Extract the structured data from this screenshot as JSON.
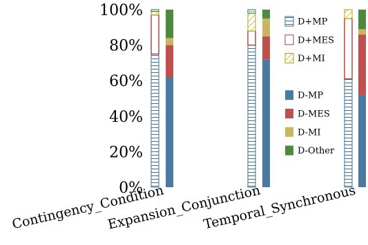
{
  "chart_data": {
    "type": "bar",
    "stacked": true,
    "categories": [
      "Contingency_Condition",
      "Expansion_Conjunction",
      "Temporal_Synchronous"
    ],
    "ylim": [
      0,
      100
    ],
    "yticks": [
      "0%",
      "20%",
      "40%",
      "60%",
      "80%",
      "100%"
    ],
    "groups": [
      {
        "name": "D+",
        "series": [
          {
            "name": "D+MP",
            "values": [
              75,
              80,
              61
            ],
            "color": "#3a6f98",
            "pattern": "hlines"
          },
          {
            "name": "D+MES",
            "values": [
              22,
              8,
              34
            ],
            "color": "#b03a3a",
            "pattern": "outline"
          },
          {
            "name": "D+MI",
            "values": [
              2,
              10,
              5
            ],
            "color": "#b8a000",
            "pattern": "diag"
          },
          {
            "name": "",
            "values": [
              1,
              2,
              0
            ],
            "color": "#2e7a2e",
            "pattern": "dots"
          }
        ]
      },
      {
        "name": "D-",
        "series": [
          {
            "name": "D-MP",
            "values": [
              62,
              72,
              52
            ],
            "color": "#4a7aa0",
            "pattern": "solid"
          },
          {
            "name": "D-MES",
            "values": [
              18,
              13,
              34
            ],
            "color": "#c0504d",
            "pattern": "solid"
          },
          {
            "name": "D-MI",
            "values": [
              4,
              10,
              3
            ],
            "color": "#c9b660",
            "pattern": "solid"
          },
          {
            "name": "D-Other",
            "values": [
              16,
              5,
              11
            ],
            "color": "#4e8a3e",
            "pattern": "solid"
          }
        ]
      }
    ],
    "legend": {
      "placement": "right",
      "entries": [
        "D+MP",
        "D+MES",
        "D+MI",
        "",
        "D-MP",
        "D-MES",
        "D-MI",
        "D-Other"
      ]
    },
    "grid": false
  }
}
